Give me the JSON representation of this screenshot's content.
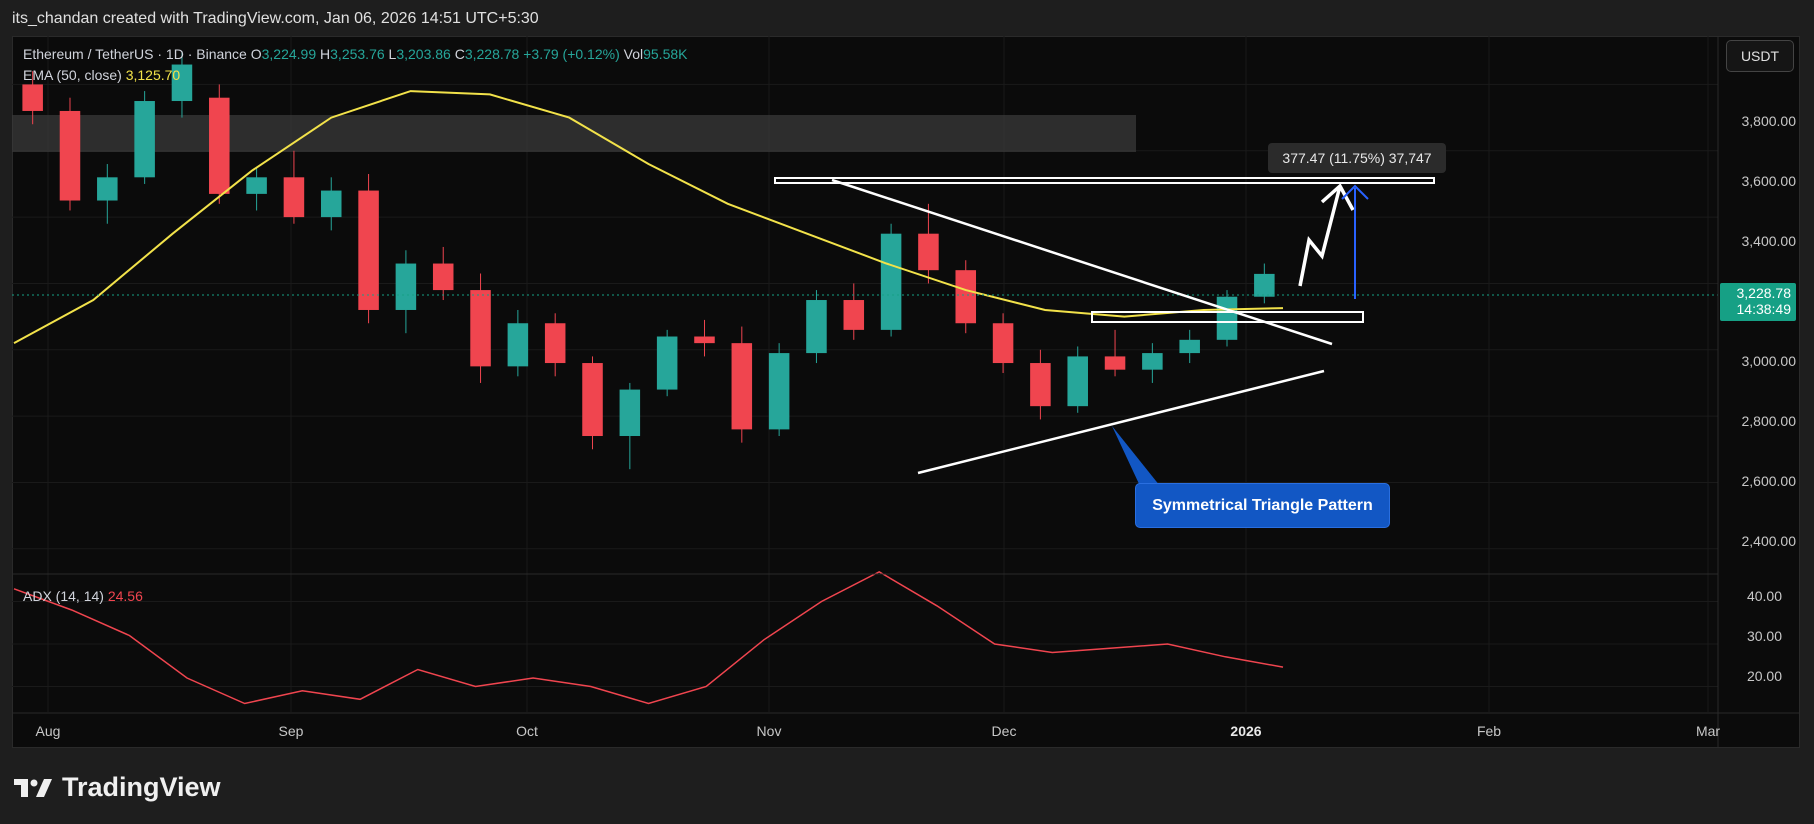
{
  "header": {
    "creator_text": "its_chandan created with TradingView.com, Jan 06, 2026 14:51 UTC+5:30"
  },
  "legend": {
    "symbol": "Ethereum / TetherUS · 1D · Binance",
    "open_label": "O",
    "open": "3,224.99",
    "high_label": "H",
    "high": "3,253.76",
    "low_label": "L",
    "low": "3,203.86",
    "close_label": "C",
    "close": "3,228.78",
    "change": "+3.79 (+0.12%)",
    "volume_label": "Vol",
    "volume": "95.58K",
    "ema_label": "EMA (50, close)",
    "ema_value": "3,125.70",
    "adx_label": "ADX (14, 14)",
    "adx_value": "24.56"
  },
  "toolbar": {
    "currency": "USDT"
  },
  "last_price": {
    "price": "3,228.78",
    "countdown": "14:38:49"
  },
  "annotations": {
    "measure": "377.47 (11.75%) 37,747",
    "pattern": "Symmetrical Triangle Pattern"
  },
  "colors": {
    "up": "#26a69a",
    "down": "#f0454f",
    "ema": "#f2e24a",
    "adx": "#f0454f",
    "callout": "#1257c4"
  },
  "brand": {
    "name": "TradingView"
  },
  "chart_data": {
    "type": "candlestick",
    "price_axis": {
      "unit": "USDT",
      "ticks": [
        "3,800.00",
        "3,600.00",
        "3,400.00",
        "3,200.00",
        "3,000.00",
        "2,800.00",
        "2,600.00",
        "2,400.00"
      ],
      "range": [
        2330,
        3940
      ]
    },
    "adx_axis": {
      "ticks": [
        "40.00",
        "30.00",
        "20.00"
      ],
      "range": [
        14,
        46
      ]
    },
    "time_axis": {
      "labels": [
        "Aug",
        "Sep",
        "Oct",
        "Nov",
        "Dec",
        "2026",
        "Feb",
        "Mar"
      ],
      "highlight": "2026"
    },
    "ohlc_sample": [
      [
        3800,
        3840,
        3680,
        3720
      ],
      [
        3720,
        3760,
        3420,
        3450
      ],
      [
        3450,
        3560,
        3380,
        3520
      ],
      [
        3520,
        3780,
        3500,
        3750
      ],
      [
        3750,
        3900,
        3700,
        3860
      ],
      [
        3760,
        3800,
        3440,
        3470
      ],
      [
        3470,
        3550,
        3420,
        3520
      ],
      [
        3520,
        3600,
        3380,
        3400
      ],
      [
        3400,
        3520,
        3360,
        3480
      ],
      [
        3480,
        3530,
        3080,
        3120
      ],
      [
        3120,
        3300,
        3050,
        3260
      ],
      [
        3260,
        3310,
        3150,
        3180
      ],
      [
        3180,
        3230,
        2900,
        2950
      ],
      [
        2950,
        3120,
        2920,
        3080
      ],
      [
        3080,
        3110,
        2920,
        2960
      ],
      [
        2960,
        2980,
        2700,
        2740
      ],
      [
        2740,
        2900,
        2640,
        2880
      ],
      [
        2880,
        3060,
        2860,
        3040
      ],
      [
        3040,
        3090,
        2980,
        3020
      ],
      [
        3020,
        3070,
        2720,
        2760
      ],
      [
        2760,
        3020,
        2740,
        2990
      ],
      [
        2990,
        3180,
        2960,
        3150
      ],
      [
        3150,
        3200,
        3030,
        3060
      ],
      [
        3060,
        3380,
        3040,
        3350
      ],
      [
        3350,
        3440,
        3200,
        3240
      ],
      [
        3240,
        3270,
        3050,
        3080
      ],
      [
        3080,
        3110,
        2930,
        2960
      ],
      [
        2960,
        3000,
        2790,
        2830
      ],
      [
        2830,
        3010,
        2810,
        2980
      ],
      [
        2980,
        3060,
        2920,
        2940
      ],
      [
        2940,
        3020,
        2900,
        2990
      ],
      [
        2990,
        3060,
        2960,
        3030
      ],
      [
        3030,
        3180,
        3010,
        3160
      ],
      [
        3160,
        3260,
        3140,
        3228.78
      ]
    ],
    "ema50_sample": [
      3020,
      3150,
      3350,
      3540,
      3700,
      3780,
      3770,
      3700,
      3560,
      3440,
      3350,
      3260,
      3180,
      3120,
      3100,
      3120,
      3125.7
    ],
    "adx_sample": [
      43,
      38,
      32,
      22,
      16,
      19,
      17,
      24,
      20,
      22,
      20,
      16,
      20,
      31,
      40,
      47,
      39,
      30,
      28,
      29,
      30,
      27,
      24.56
    ],
    "levels": {
      "resistance": 3600,
      "breakout_zone": [
        3130,
        3160
      ],
      "supply_zone": [
        3700,
        3820
      ],
      "target": 3606.25
    }
  }
}
